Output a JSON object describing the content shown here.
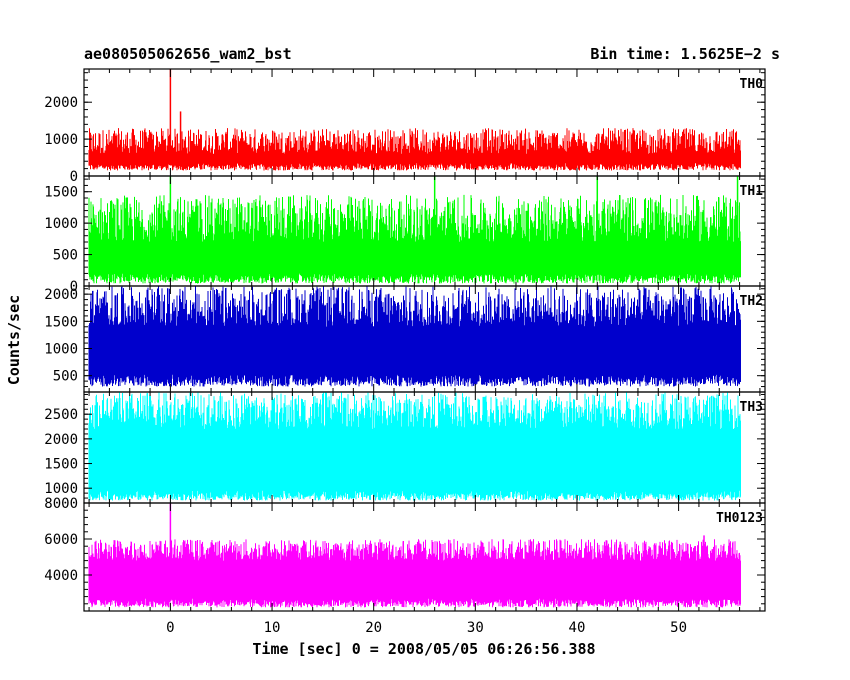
{
  "chart_data": {
    "type": "line",
    "title": "ae080505062656_wam2_bst",
    "bin_time_label": "Bin time: 1.5625E−2 s",
    "xlabel": "Time [sec] 0 = 2008/05/05 06:26:56.388",
    "ylabel": "Counts/sec",
    "xlim": [
      -8.5,
      58.5
    ],
    "x_ticks": [
      0,
      10,
      20,
      30,
      40,
      50
    ],
    "x_data_range": [
      -8,
      56
    ],
    "panels": [
      {
        "name": "TH0",
        "color": "#ff0000",
        "ylim": [
          0,
          2900
        ],
        "y_ticks": [
          0,
          1000,
          2000
        ],
        "base": [
          150,
          350
        ],
        "typical_top": [
          600,
          1300
        ],
        "spikes": [
          {
            "x": 0.0,
            "y": 2900
          },
          {
            "x": 1.0,
            "y": 1750
          }
        ]
      },
      {
        "name": "TH1",
        "color": "#00ff00",
        "ylim": [
          0,
          1750
        ],
        "y_ticks": [
          0,
          500,
          1000,
          1500
        ],
        "base": [
          40,
          200
        ],
        "typical_top": [
          700,
          1450
        ],
        "spikes": [
          {
            "x": 0.0,
            "y": 1750
          },
          {
            "x": 26.0,
            "y": 1750
          },
          {
            "x": 42.0,
            "y": 1750
          },
          {
            "x": 55.8,
            "y": 1750
          }
        ]
      },
      {
        "name": "TH2",
        "color": "#0000cc",
        "ylim": [
          200,
          2150
        ],
        "y_ticks": [
          500,
          1000,
          1500,
          2000
        ],
        "base": [
          300,
          520
        ],
        "typical_top": [
          1400,
          2150
        ],
        "spikes": []
      },
      {
        "name": "TH3",
        "color": "#00ffff",
        "ylim": [
          700,
          2950
        ],
        "y_ticks": [
          1000,
          1500,
          2000,
          2500
        ],
        "base": [
          750,
          950
        ],
        "typical_top": [
          2200,
          2950
        ],
        "spikes": []
      },
      {
        "name": "TH0123",
        "color": "#ff00ff",
        "ylim": [
          2000,
          8000
        ],
        "y_ticks": [
          4000,
          6000,
          8000
        ],
        "base": [
          2200,
          2700
        ],
        "typical_top": [
          4800,
          6000
        ],
        "spikes": [
          {
            "x": 0.0,
            "y": 8000
          },
          {
            "x": 52.5,
            "y": 6200
          }
        ]
      }
    ]
  }
}
